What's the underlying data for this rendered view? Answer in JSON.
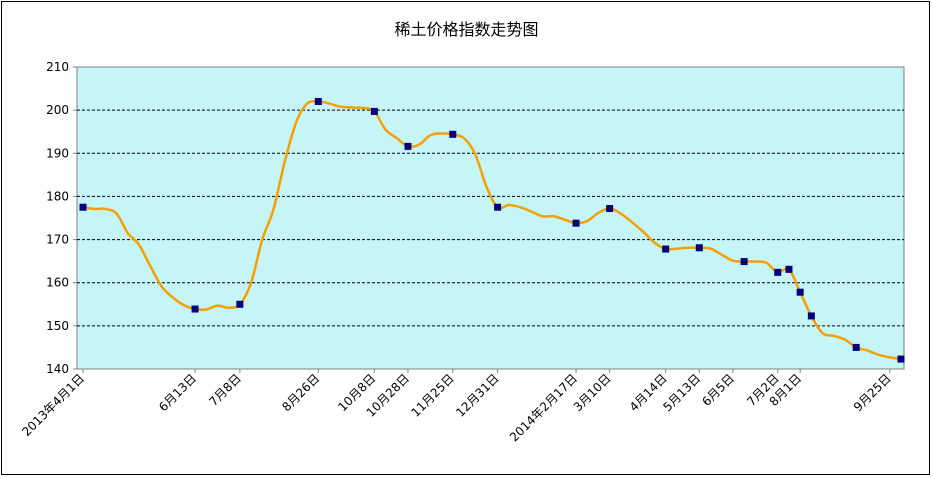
{
  "chart_data": {
    "type": "line",
    "title": "稀土价格指数走势图",
    "xlabel": "",
    "ylabel": "",
    "ylim": [
      140,
      210
    ],
    "yticks": [
      140,
      150,
      160,
      170,
      180,
      190,
      200,
      210
    ],
    "grid": true,
    "legend": "none",
    "x_tick_labels": [
      {
        "label": "2013年4月1日",
        "index": 0
      },
      {
        "label": "6月13日",
        "index": 10
      },
      {
        "label": "7月8日",
        "index": 14
      },
      {
        "label": "8月26日",
        "index": 21
      },
      {
        "label": "10月8日",
        "index": 26
      },
      {
        "label": "10月28日",
        "index": 29
      },
      {
        "label": "11月25日",
        "index": 33
      },
      {
        "label": "12月31日",
        "index": 37
      },
      {
        "label": "2014年2月17日",
        "index": 44
      },
      {
        "label": "3月10日",
        "index": 47
      },
      {
        "label": "4月14日",
        "index": 52
      },
      {
        "label": "5月13日",
        "index": 55
      },
      {
        "label": "6月5日",
        "index": 58
      },
      {
        "label": "7月2日",
        "index": 62
      },
      {
        "label": "8月1日",
        "index": 64
      },
      {
        "label": "9月25日",
        "index": 72
      }
    ],
    "series": [
      {
        "values": [
          177.5,
          177.1,
          177.1,
          176,
          171.5,
          168.8,
          163.9,
          159.2,
          156.6,
          154.8,
          153.9,
          153.8,
          154.7,
          154.2,
          155,
          160,
          170,
          177,
          188,
          197,
          201.5,
          202,
          201.5,
          200.8,
          200.6,
          200.5,
          199.7,
          195.5,
          193.5,
          191.6,
          192,
          194.2,
          194.6,
          194.4,
          193.5,
          189.8,
          182.3,
          177.5,
          178,
          177.5,
          176.5,
          175.4,
          175.4,
          174.6,
          173.8,
          174.3,
          176.2,
          177.2,
          176,
          174,
          171.8,
          169.3,
          167.8,
          167.9,
          168.1,
          168.1,
          167.9,
          166.5,
          165.1,
          164.9,
          164.9,
          164.6,
          162.4,
          163.1,
          157.8,
          152.3,
          148.3,
          147.7,
          146.8,
          145,
          144.3,
          143.3,
          142.7,
          142.3
        ],
        "markers": [
          0,
          10,
          14,
          21,
          26,
          29,
          33,
          37,
          44,
          47,
          52,
          55,
          59,
          62,
          63,
          64,
          65,
          69,
          73
        ],
        "line_color": "#f5a000",
        "marker_color": "#000080"
      }
    ]
  },
  "colors": {
    "plot_background": "#c6f5f8",
    "grid": "#000000",
    "axis": "#808080"
  }
}
